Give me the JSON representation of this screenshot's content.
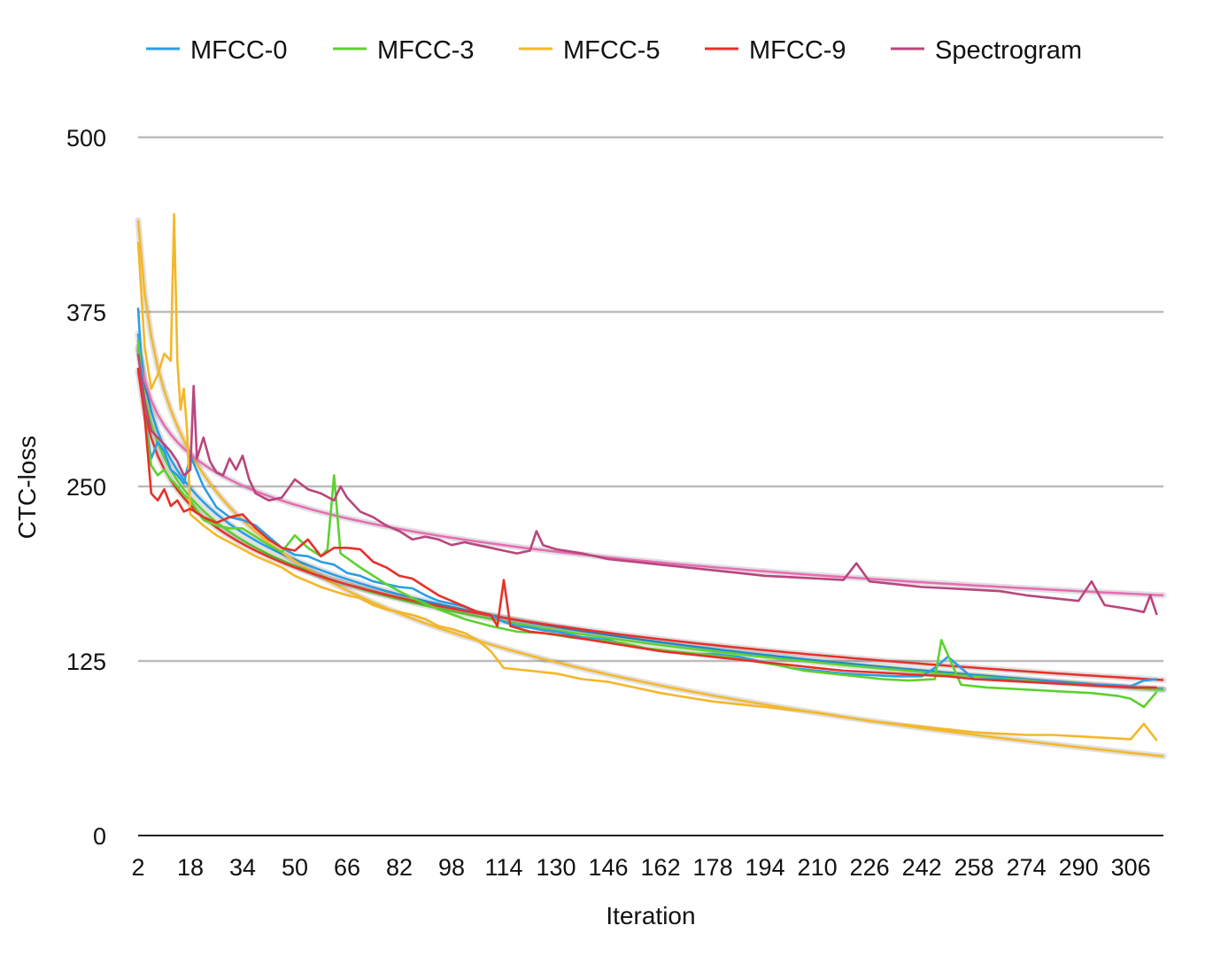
{
  "chart_data": {
    "type": "line",
    "title": "",
    "xlabel": "Iteration",
    "ylabel": "CTC-loss",
    "xlim": [
      2,
      316
    ],
    "ylim": [
      0,
      500
    ],
    "yticks": [
      0,
      125,
      250,
      375,
      500
    ],
    "xticks": [
      2,
      18,
      34,
      50,
      66,
      82,
      98,
      114,
      130,
      146,
      162,
      178,
      194,
      210,
      226,
      242,
      258,
      274,
      290,
      306
    ],
    "grid": "horizontal",
    "legend_position": "top",
    "series": [
      {
        "name": "MFCC-0",
        "color": "#2a9ee6",
        "x": [
          2,
          4,
          6,
          8,
          10,
          12,
          14,
          16,
          18,
          22,
          26,
          30,
          34,
          38,
          42,
          46,
          50,
          54,
          58,
          62,
          66,
          70,
          74,
          78,
          82,
          86,
          90,
          94,
          98,
          102,
          106,
          110,
          114,
          118,
          122,
          126,
          130,
          138,
          146,
          154,
          162,
          170,
          178,
          186,
          194,
          202,
          210,
          218,
          226,
          234,
          242,
          246,
          250,
          258,
          266,
          274,
          282,
          290,
          298,
          306,
          310,
          314
        ],
        "values": [
          378,
          300,
          270,
          282,
          275,
          262,
          258,
          252,
          272,
          250,
          235,
          228,
          226,
          222,
          214,
          206,
          201,
          200,
          196,
          194,
          188,
          186,
          182,
          180,
          178,
          177,
          172,
          168,
          166,
          164,
          160,
          158,
          153,
          150,
          149,
          147,
          146,
          142,
          140,
          135,
          133,
          130,
          130,
          128,
          124,
          120,
          118,
          116,
          115,
          114,
          114,
          120,
          128,
          112,
          112,
          110,
          110,
          108,
          108,
          107,
          111,
          112
        ]
      },
      {
        "name": "MFCC-3",
        "color": "#5ed12f",
        "x": [
          2,
          4,
          6,
          8,
          10,
          12,
          14,
          16,
          18,
          22,
          26,
          30,
          34,
          38,
          42,
          46,
          50,
          54,
          58,
          60,
          62,
          64,
          70,
          78,
          86,
          94,
          102,
          110,
          118,
          126,
          134,
          142,
          150,
          158,
          166,
          174,
          182,
          190,
          198,
          206,
          214,
          222,
          230,
          238,
          246,
          248,
          254,
          262,
          270,
          278,
          286,
          294,
          302,
          306,
          310,
          314
        ],
        "values": [
          355,
          300,
          265,
          258,
          262,
          255,
          250,
          244,
          240,
          226,
          222,
          220,
          220,
          214,
          208,
          203,
          215,
          206,
          200,
          205,
          258,
          202,
          192,
          180,
          170,
          162,
          155,
          150,
          146,
          145,
          142,
          140,
          138,
          134,
          132,
          130,
          128,
          125,
          122,
          118,
          116,
          114,
          112,
          111,
          112,
          140,
          108,
          106,
          105,
          104,
          103,
          102,
          100,
          98,
          92,
          103
        ]
      },
      {
        "name": "MFCC-5",
        "color": "#f4b72a",
        "x": [
          2,
          4,
          6,
          8,
          10,
          12,
          13,
          14,
          15,
          16,
          17,
          18,
          22,
          26,
          30,
          34,
          38,
          42,
          46,
          50,
          54,
          58,
          62,
          66,
          70,
          74,
          78,
          82,
          86,
          90,
          94,
          98,
          102,
          106,
          110,
          114,
          122,
          130,
          138,
          146,
          154,
          162,
          170,
          178,
          186,
          194,
          202,
          210,
          218,
          226,
          234,
          242,
          250,
          258,
          266,
          274,
          282,
          290,
          298,
          306,
          310,
          314
        ],
        "values": [
          425,
          350,
          320,
          330,
          345,
          340,
          445,
          340,
          305,
          320,
          290,
          230,
          222,
          215,
          210,
          205,
          200,
          196,
          192,
          186,
          182,
          178,
          175,
          172,
          170,
          165,
          162,
          160,
          158,
          155,
          150,
          148,
          145,
          140,
          132,
          120,
          118,
          116,
          112,
          110,
          106,
          102,
          99,
          96,
          94,
          92,
          90,
          88,
          85,
          82,
          80,
          78,
          76,
          74,
          73,
          72,
          72,
          71,
          70,
          69,
          80,
          68
        ]
      },
      {
        "name": "MFCC-9",
        "color": "#e8302a",
        "x": [
          2,
          4,
          6,
          8,
          10,
          12,
          14,
          16,
          18,
          22,
          26,
          30,
          34,
          38,
          42,
          46,
          50,
          54,
          58,
          62,
          66,
          70,
          74,
          78,
          82,
          86,
          90,
          94,
          98,
          102,
          106,
          110,
          112,
          114,
          116,
          122,
          130,
          138,
          146,
          154,
          162,
          170,
          178,
          186,
          194,
          202,
          210,
          218,
          226,
          234,
          242,
          250,
          258,
          266,
          274,
          282,
          290,
          298,
          306,
          314
        ],
        "values": [
          335,
          300,
          245,
          240,
          248,
          236,
          240,
          232,
          234,
          228,
          224,
          228,
          230,
          220,
          212,
          206,
          204,
          212,
          200,
          206,
          206,
          205,
          196,
          192,
          186,
          184,
          178,
          172,
          168,
          164,
          160,
          158,
          150,
          183,
          150,
          146,
          144,
          141,
          138,
          135,
          132,
          130,
          128,
          126,
          124,
          122,
          120,
          118,
          117,
          116,
          115,
          114,
          112,
          111,
          110,
          109,
          108,
          107,
          106,
          106
        ]
      },
      {
        "name": "Spectrogram",
        "color": "#b8467c",
        "x": [
          2,
          4,
          6,
          8,
          10,
          12,
          14,
          16,
          18,
          19,
          20,
          22,
          24,
          26,
          28,
          30,
          32,
          34,
          36,
          38,
          42,
          46,
          50,
          54,
          58,
          62,
          64,
          66,
          70,
          74,
          78,
          82,
          86,
          90,
          94,
          98,
          102,
          106,
          110,
          114,
          118,
          122,
          124,
          126,
          130,
          138,
          146,
          154,
          162,
          170,
          178,
          186,
          194,
          202,
          210,
          218,
          222,
          226,
          234,
          242,
          250,
          258,
          266,
          274,
          282,
          290,
          294,
          298,
          306,
          310,
          312,
          314
        ],
        "values": [
          345,
          310,
          290,
          285,
          280,
          275,
          268,
          258,
          262,
          322,
          270,
          285,
          268,
          260,
          258,
          270,
          262,
          272,
          255,
          245,
          240,
          242,
          255,
          248,
          245,
          240,
          250,
          242,
          232,
          228,
          222,
          218,
          212,
          214,
          212,
          208,
          210,
          208,
          206,
          204,
          202,
          204,
          218,
          208,
          205,
          202,
          198,
          196,
          194,
          192,
          190,
          188,
          186,
          185,
          184,
          183,
          195,
          182,
          180,
          178,
          177,
          176,
          175,
          172,
          170,
          168,
          182,
          165,
          162,
          160,
          172,
          158
        ]
      }
    ],
    "trendline_colors": {
      "MFCC-0": "#2a9ee6",
      "MFCC-3": "#5ed12f",
      "MFCC-5": "#f4b72a",
      "MFCC-9": "#e8302a",
      "Spectrogram": "#e86bb4"
    }
  }
}
